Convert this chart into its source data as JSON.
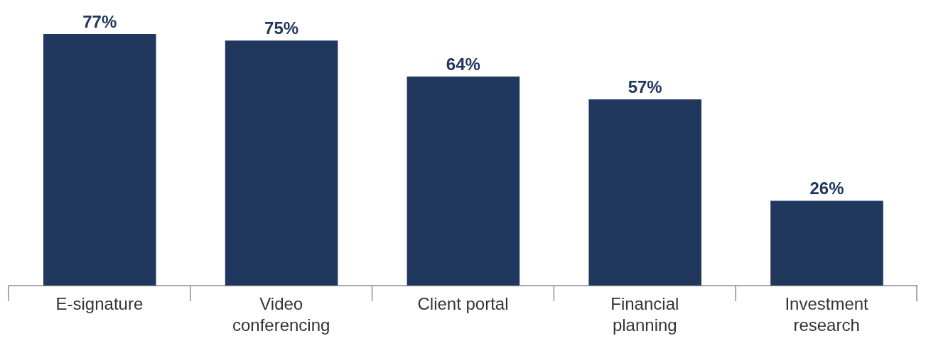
{
  "chart_data": {
    "type": "bar",
    "categories": [
      "E-signature",
      "Video conferencing",
      "Client portal",
      "Financial planning",
      "Investment research"
    ],
    "values": [
      77,
      75,
      64,
      57,
      26
    ],
    "value_labels": [
      "77%",
      "75%",
      "64%",
      "57%",
      "26%"
    ],
    "color": "#20375e"
  }
}
